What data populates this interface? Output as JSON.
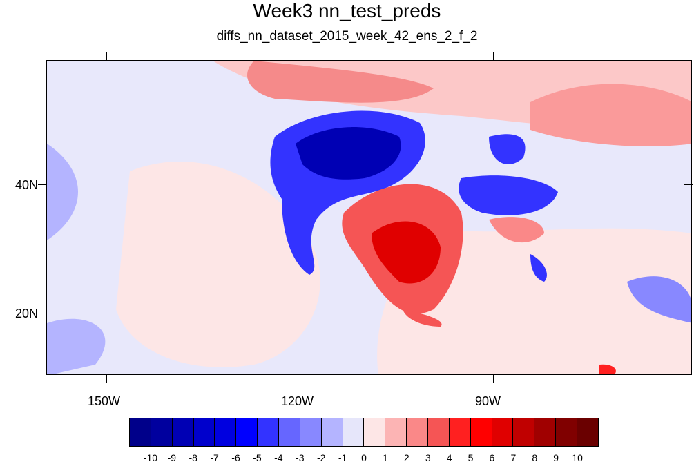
{
  "title": "Week3 nn_test_preds",
  "subtitle": "diffs_nn_dataset_2015_week_42_ens_2_f_2",
  "axes": {
    "lon_labels": [
      "150W",
      "120W",
      "90W"
    ],
    "lat_labels": [
      "40N",
      "20N"
    ]
  },
  "colorbar": {
    "labels": [
      "-10",
      "-9",
      "-8",
      "-7",
      "-6",
      "-5",
      "-4",
      "-3",
      "-2",
      "-1",
      "0",
      "1",
      "2",
      "3",
      "4",
      "5",
      "6",
      "7",
      "8",
      "9",
      "10"
    ],
    "colors": [
      "#00008a",
      "#00009e",
      "#0000b4",
      "#0000cc",
      "#0000e0",
      "#0000ff",
      "#3333ff",
      "#6666ff",
      "#8888ff",
      "#b4b4ff",
      "#e6e6fa",
      "#fde6e6",
      "#fcb4b4",
      "#fa8888",
      "#f55555",
      "#ff2020",
      "#ff0000",
      "#e00000",
      "#c00000",
      "#a00000",
      "#800000",
      "#6a0000"
    ]
  }
}
